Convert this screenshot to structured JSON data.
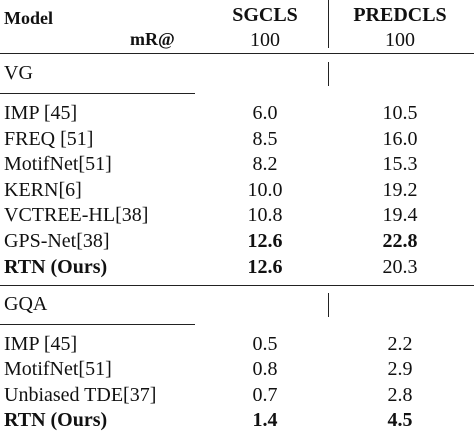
{
  "header": {
    "model": "Model",
    "metric": "mR@",
    "columns": [
      {
        "name": "SGCLS",
        "sub": "100"
      },
      {
        "name": "PREDCLS",
        "sub": "100"
      }
    ]
  },
  "sections": [
    {
      "name": "VG",
      "rows": [
        {
          "cells": [
            "IMP [45]",
            "6.0",
            "10.5"
          ],
          "bold": [
            false,
            false,
            false
          ]
        },
        {
          "cells": [
            "FREQ [51]",
            "8.5",
            "16.0"
          ],
          "bold": [
            false,
            false,
            false
          ]
        },
        {
          "cells": [
            "MotifNet[51]",
            "8.2",
            "15.3"
          ],
          "bold": [
            false,
            false,
            false
          ]
        },
        {
          "cells": [
            "KERN[6]",
            "10.0",
            "19.2"
          ],
          "bold": [
            false,
            false,
            false
          ]
        },
        {
          "cells": [
            "VCTREE-HL[38]",
            "10.8",
            "19.4"
          ],
          "bold": [
            false,
            false,
            false
          ]
        },
        {
          "cells": [
            "GPS-Net[38]",
            "12.6",
            "22.8"
          ],
          "bold": [
            false,
            true,
            true
          ]
        },
        {
          "cells": [
            "RTN (Ours)",
            "12.6",
            "20.3"
          ],
          "bold": [
            true,
            true,
            false
          ]
        }
      ]
    },
    {
      "name": "GQA",
      "rows": [
        {
          "cells": [
            "IMP [45]",
            "0.5",
            "2.2"
          ],
          "bold": [
            false,
            false,
            false
          ]
        },
        {
          "cells": [
            "MotifNet[51]",
            "0.8",
            "2.9"
          ],
          "bold": [
            false,
            false,
            false
          ]
        },
        {
          "cells": [
            "Unbiased TDE[37]",
            "0.7",
            "2.8"
          ],
          "bold": [
            false,
            false,
            false
          ]
        },
        {
          "cells": [
            "RTN (Ours)",
            "1.4",
            "4.5"
          ],
          "bold": [
            true,
            true,
            true
          ]
        }
      ]
    }
  ]
}
